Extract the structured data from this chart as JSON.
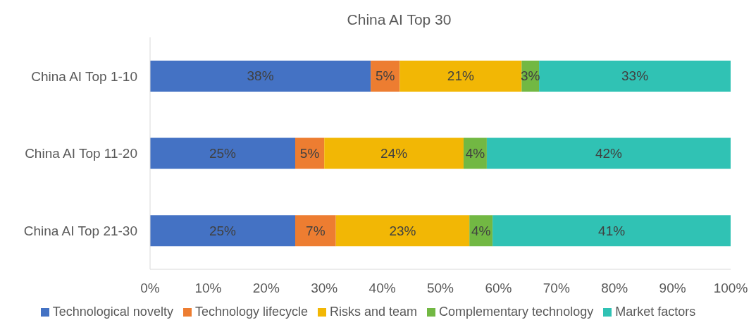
{
  "chart_data": {
    "type": "bar",
    "title": "China AI Top 30",
    "orientation": "horizontal",
    "stacked": true,
    "categories": [
      "China AI Top 1-10",
      "China AI Top 11-20",
      "China AI Top 21-30"
    ],
    "series": [
      {
        "name": "Technological novelty",
        "color": "#4472c4",
        "values": [
          38,
          25,
          25
        ],
        "value_labels": [
          "38%",
          "25%",
          "25%"
        ]
      },
      {
        "name": "Technology lifecycle",
        "color": "#ed7d31",
        "values": [
          5,
          5,
          7
        ],
        "value_labels": [
          "5%",
          "5%",
          "7%"
        ]
      },
      {
        "name": "Risks and team",
        "color": "#f2b705",
        "values": [
          21,
          24,
          23
        ],
        "value_labels": [
          "21%",
          "24%",
          "23%"
        ]
      },
      {
        "name": "Complementary technology",
        "color": "#72b843",
        "values": [
          3,
          4,
          4
        ],
        "value_labels": [
          "3%",
          "4%",
          "4%"
        ]
      },
      {
        "name": "Market factors",
        "color": "#30c2b4",
        "values": [
          33,
          42,
          41
        ],
        "value_labels": [
          "33%",
          "42%",
          "41%"
        ]
      }
    ],
    "xlim": [
      0,
      100
    ],
    "xticks": [
      {
        "value": 0,
        "label": "0%"
      },
      {
        "value": 10,
        "label": "10%"
      },
      {
        "value": 20,
        "label": "20%"
      },
      {
        "value": 30,
        "label": "30%"
      },
      {
        "value": 40,
        "label": "40%"
      },
      {
        "value": 50,
        "label": "50%"
      },
      {
        "value": 60,
        "label": "60%"
      },
      {
        "value": 70,
        "label": "70%"
      },
      {
        "value": 80,
        "label": "80%"
      },
      {
        "value": 90,
        "label": "90%"
      },
      {
        "value": 100,
        "label": "100%"
      }
    ],
    "grid": false,
    "legend": "bottom"
  }
}
